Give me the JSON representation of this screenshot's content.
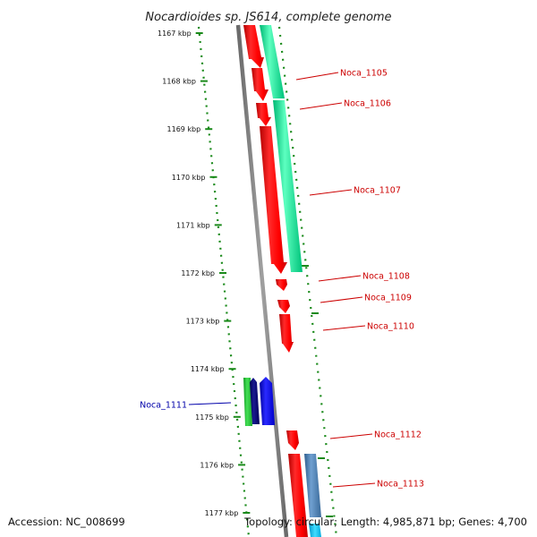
{
  "title": "Nocardioides sp. JS614, complete genome",
  "footer": {
    "accession": "Accession: NC_008699",
    "topology": "Topology: circular; Length: 4,985,871 bp; Genes: 4,700"
  },
  "colors": {
    "backbone": "#808080",
    "ruler_dots": "#1a8a1a",
    "gene_red": "#ff1a1a",
    "gene_teal": "#1aff9c",
    "gene_blue": "#0000ff",
    "gene_navy": "#000080",
    "gene_green": "#22cc33",
    "gene_steel": "#4a7fb5",
    "gene_cyan": "#00ccff",
    "label_red": "#cc0000",
    "label_blue": "#0000aa"
  },
  "ticks": [
    {
      "label": "1167 kbp"
    },
    {
      "label": "1168 kbp"
    },
    {
      "label": "1169 kbp"
    },
    {
      "label": "1170 kbp"
    },
    {
      "label": "1171 kbp"
    },
    {
      "label": "1172 kbp"
    },
    {
      "label": "1173 kbp"
    },
    {
      "label": "1174 kbp"
    },
    {
      "label": "1175 kbp"
    },
    {
      "label": "1176 kbp"
    },
    {
      "label": "1177 kbp"
    }
  ],
  "gene_labels": [
    {
      "name": "Noca_1105",
      "color": "label_red"
    },
    {
      "name": "Noca_1106",
      "color": "label_red"
    },
    {
      "name": "Noca_1107",
      "color": "label_red"
    },
    {
      "name": "Noca_1108",
      "color": "label_red"
    },
    {
      "name": "Noca_1109",
      "color": "label_red"
    },
    {
      "name": "Noca_1110",
      "color": "label_red"
    },
    {
      "name": "Noca_1111",
      "color": "label_blue"
    },
    {
      "name": "Noca_1112",
      "color": "label_red"
    },
    {
      "name": "Noca_1113",
      "color": "label_red"
    }
  ]
}
